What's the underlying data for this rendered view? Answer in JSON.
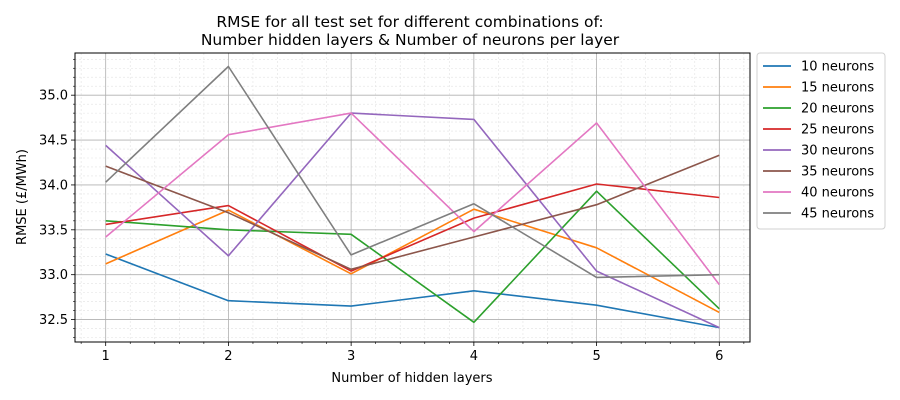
{
  "chart_data": {
    "type": "line",
    "title_line1": "RMSE for all test set for different combinations of:",
    "title_line2": "Number hidden layers & Number of neurons per layer",
    "xlabel": "Number of hidden layers",
    "ylabel": "RMSE (£/MWh)",
    "x": [
      1,
      2,
      3,
      4,
      5,
      6
    ],
    "xlim": [
      0.75,
      6.25
    ],
    "ylim": [
      32.25,
      35.47
    ],
    "xticks": [
      "1",
      "2",
      "3",
      "4",
      "5",
      "6"
    ],
    "yticks": [
      "32.5",
      "33.0",
      "33.5",
      "34.0",
      "34.5",
      "35.0"
    ],
    "ytick_values": [
      32.5,
      33.0,
      33.5,
      34.0,
      34.5,
      35.0
    ],
    "grid": "major and minor",
    "legend_position": "outside right, top",
    "series": [
      {
        "name": "10 neurons",
        "color": "#1f77b4",
        "values": [
          33.23,
          32.71,
          32.65,
          32.82,
          32.66,
          32.41
        ]
      },
      {
        "name": "15 neurons",
        "color": "#ff7f0e",
        "values": [
          33.12,
          33.72,
          33.01,
          33.73,
          33.3,
          32.58
        ]
      },
      {
        "name": "20 neurons",
        "color": "#2ca02c",
        "values": [
          33.6,
          33.5,
          33.45,
          32.47,
          33.93,
          32.62
        ]
      },
      {
        "name": "25 neurons",
        "color": "#d62728",
        "values": [
          33.56,
          33.77,
          33.04,
          33.63,
          34.01,
          33.86
        ]
      },
      {
        "name": "30 neurons",
        "color": "#9467bd",
        "values": [
          34.44,
          33.21,
          34.8,
          34.73,
          33.04,
          32.41
        ]
      },
      {
        "name": "35 neurons",
        "color": "#8c564b",
        "values": [
          34.21,
          33.69,
          33.06,
          33.42,
          33.78,
          34.33
        ]
      },
      {
        "name": "40 neurons",
        "color": "#e377c2",
        "values": [
          33.42,
          34.56,
          34.8,
          33.48,
          34.69,
          32.89
        ]
      },
      {
        "name": "45 neurons",
        "color": "#7f7f7f",
        "values": [
          34.03,
          35.32,
          33.22,
          33.79,
          32.97,
          33.0
        ]
      }
    ]
  }
}
